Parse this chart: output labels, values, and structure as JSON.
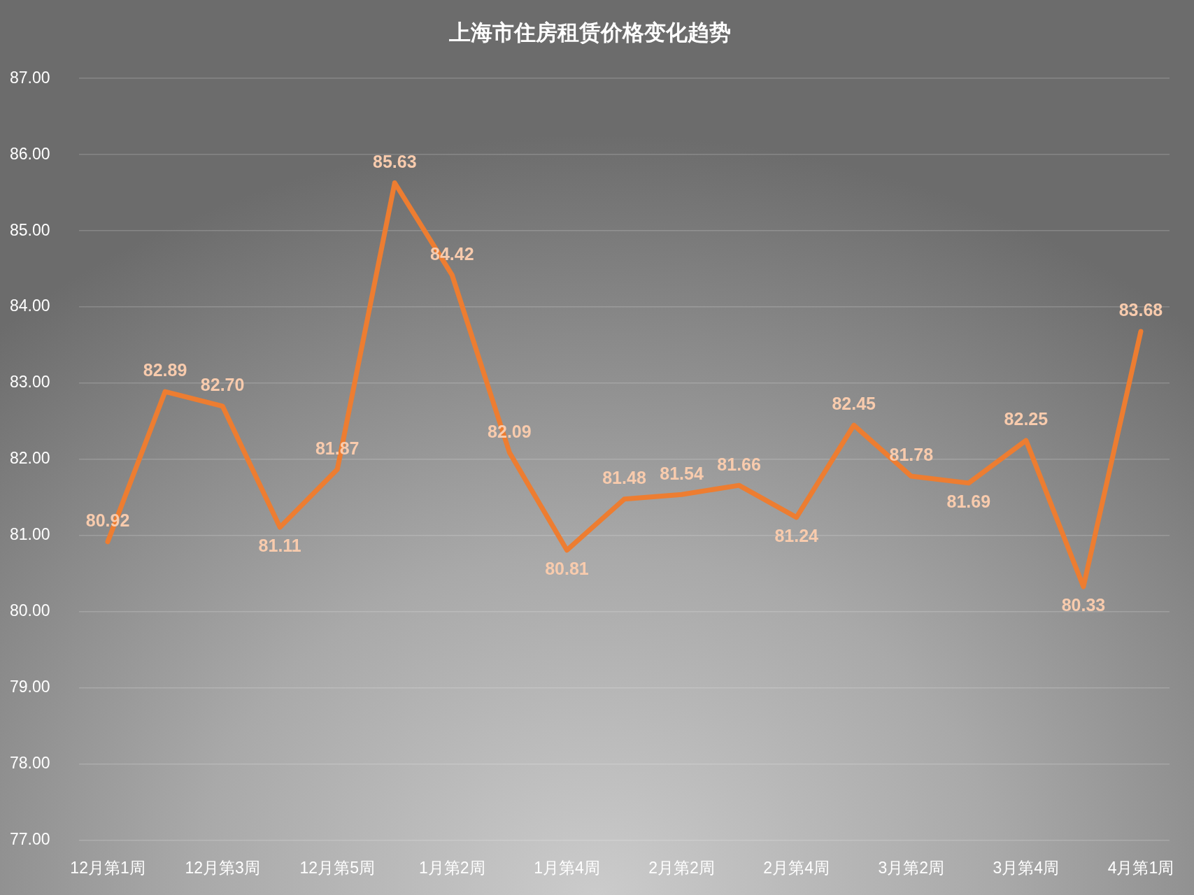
{
  "chart_data": {
    "type": "line",
    "title": "上海市住房租赁价格变化趋势",
    "categories": [
      "12月第1周",
      null,
      "12月第3周",
      null,
      "12月第5周",
      null,
      "1月第2周",
      null,
      "1月第4周",
      null,
      "2月第2周",
      null,
      "2月第4周",
      null,
      "3月第2周",
      null,
      "3月第4周",
      null,
      "4月第1周"
    ],
    "values": [
      80.92,
      82.89,
      82.7,
      81.11,
      81.87,
      85.63,
      84.42,
      82.09,
      80.81,
      81.48,
      81.54,
      81.66,
      81.24,
      82.45,
      81.78,
      81.69,
      82.25,
      80.33,
      83.68
    ],
    "value_labels": [
      "80.92",
      "82.89",
      "82.70",
      "81.11",
      "81.87",
      "85.63",
      "84.42",
      "82.09",
      "80.81",
      "81.48",
      "81.54",
      "81.66",
      "81.24",
      "82.45",
      "81.78",
      "81.69",
      "82.25",
      "80.33",
      "83.68"
    ],
    "color": "#ed7d31",
    "ylim": [
      77,
      87
    ],
    "yticks": [
      {
        "value": 77,
        "label": "77.00"
      },
      {
        "value": 78,
        "label": "78.00"
      },
      {
        "value": 79,
        "label": "79.00"
      },
      {
        "value": 80,
        "label": "80.00"
      },
      {
        "value": 81,
        "label": "81.00"
      },
      {
        "value": 82,
        "label": "82.00"
      },
      {
        "value": 83,
        "label": "83.00"
      },
      {
        "value": 84,
        "label": "84.00"
      },
      {
        "value": 85,
        "label": "85.00"
      },
      {
        "value": 86,
        "label": "86.00"
      },
      {
        "value": 87,
        "label": "87.00"
      }
    ],
    "grid": "y",
    "marker": "none",
    "line_style": "solid"
  }
}
